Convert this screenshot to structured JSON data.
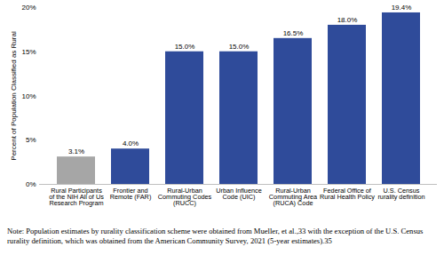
{
  "chart_data": {
    "type": "bar",
    "y_label": "Percent of Population Classified as Rural",
    "categories": [
      "Rural Participants of the NIH All of Us Research Program",
      "Frontier and Remote (FAR)",
      "Rural-Urban Commuting Codes (RUCC)",
      "Urban Influence Code (UIC)",
      "Rural-Urban Commuting Area (RUCA) Code",
      "Federal Office of Rural Health Policy",
      "U.S. Census rurality definition"
    ],
    "values": [
      3.1,
      4.0,
      15.0,
      15.0,
      16.5,
      18.0,
      19.4
    ],
    "value_labels": [
      "3.1%",
      "4.0%",
      "15.0%",
      "15.0%",
      "16.5%",
      "18.0%",
      "19.4%"
    ],
    "colors": [
      "#a6a6a6",
      "#2f4b9a",
      "#2f4b9a",
      "#2f4b9a",
      "#2f4b9a",
      "#2f4b9a",
      "#2f4b9a"
    ],
    "data_labels": true,
    "grid": false,
    "ylim": [
      0,
      20
    ],
    "yticks": [
      {
        "value": 0,
        "label": "0%"
      },
      {
        "value": 5,
        "label": "5%"
      },
      {
        "value": 10,
        "label": "10%"
      },
      {
        "value": 15,
        "label": "15%"
      },
      {
        "value": 20,
        "label": "20%"
      }
    ],
    "note": "Note: Population estimates by rurality classification scheme were obtained from Mueller, et al.,33 with the exception of the U.S. Census rurality definition, which was obtained from the American Community Survey, 2021 (5-year estimates).35"
  }
}
